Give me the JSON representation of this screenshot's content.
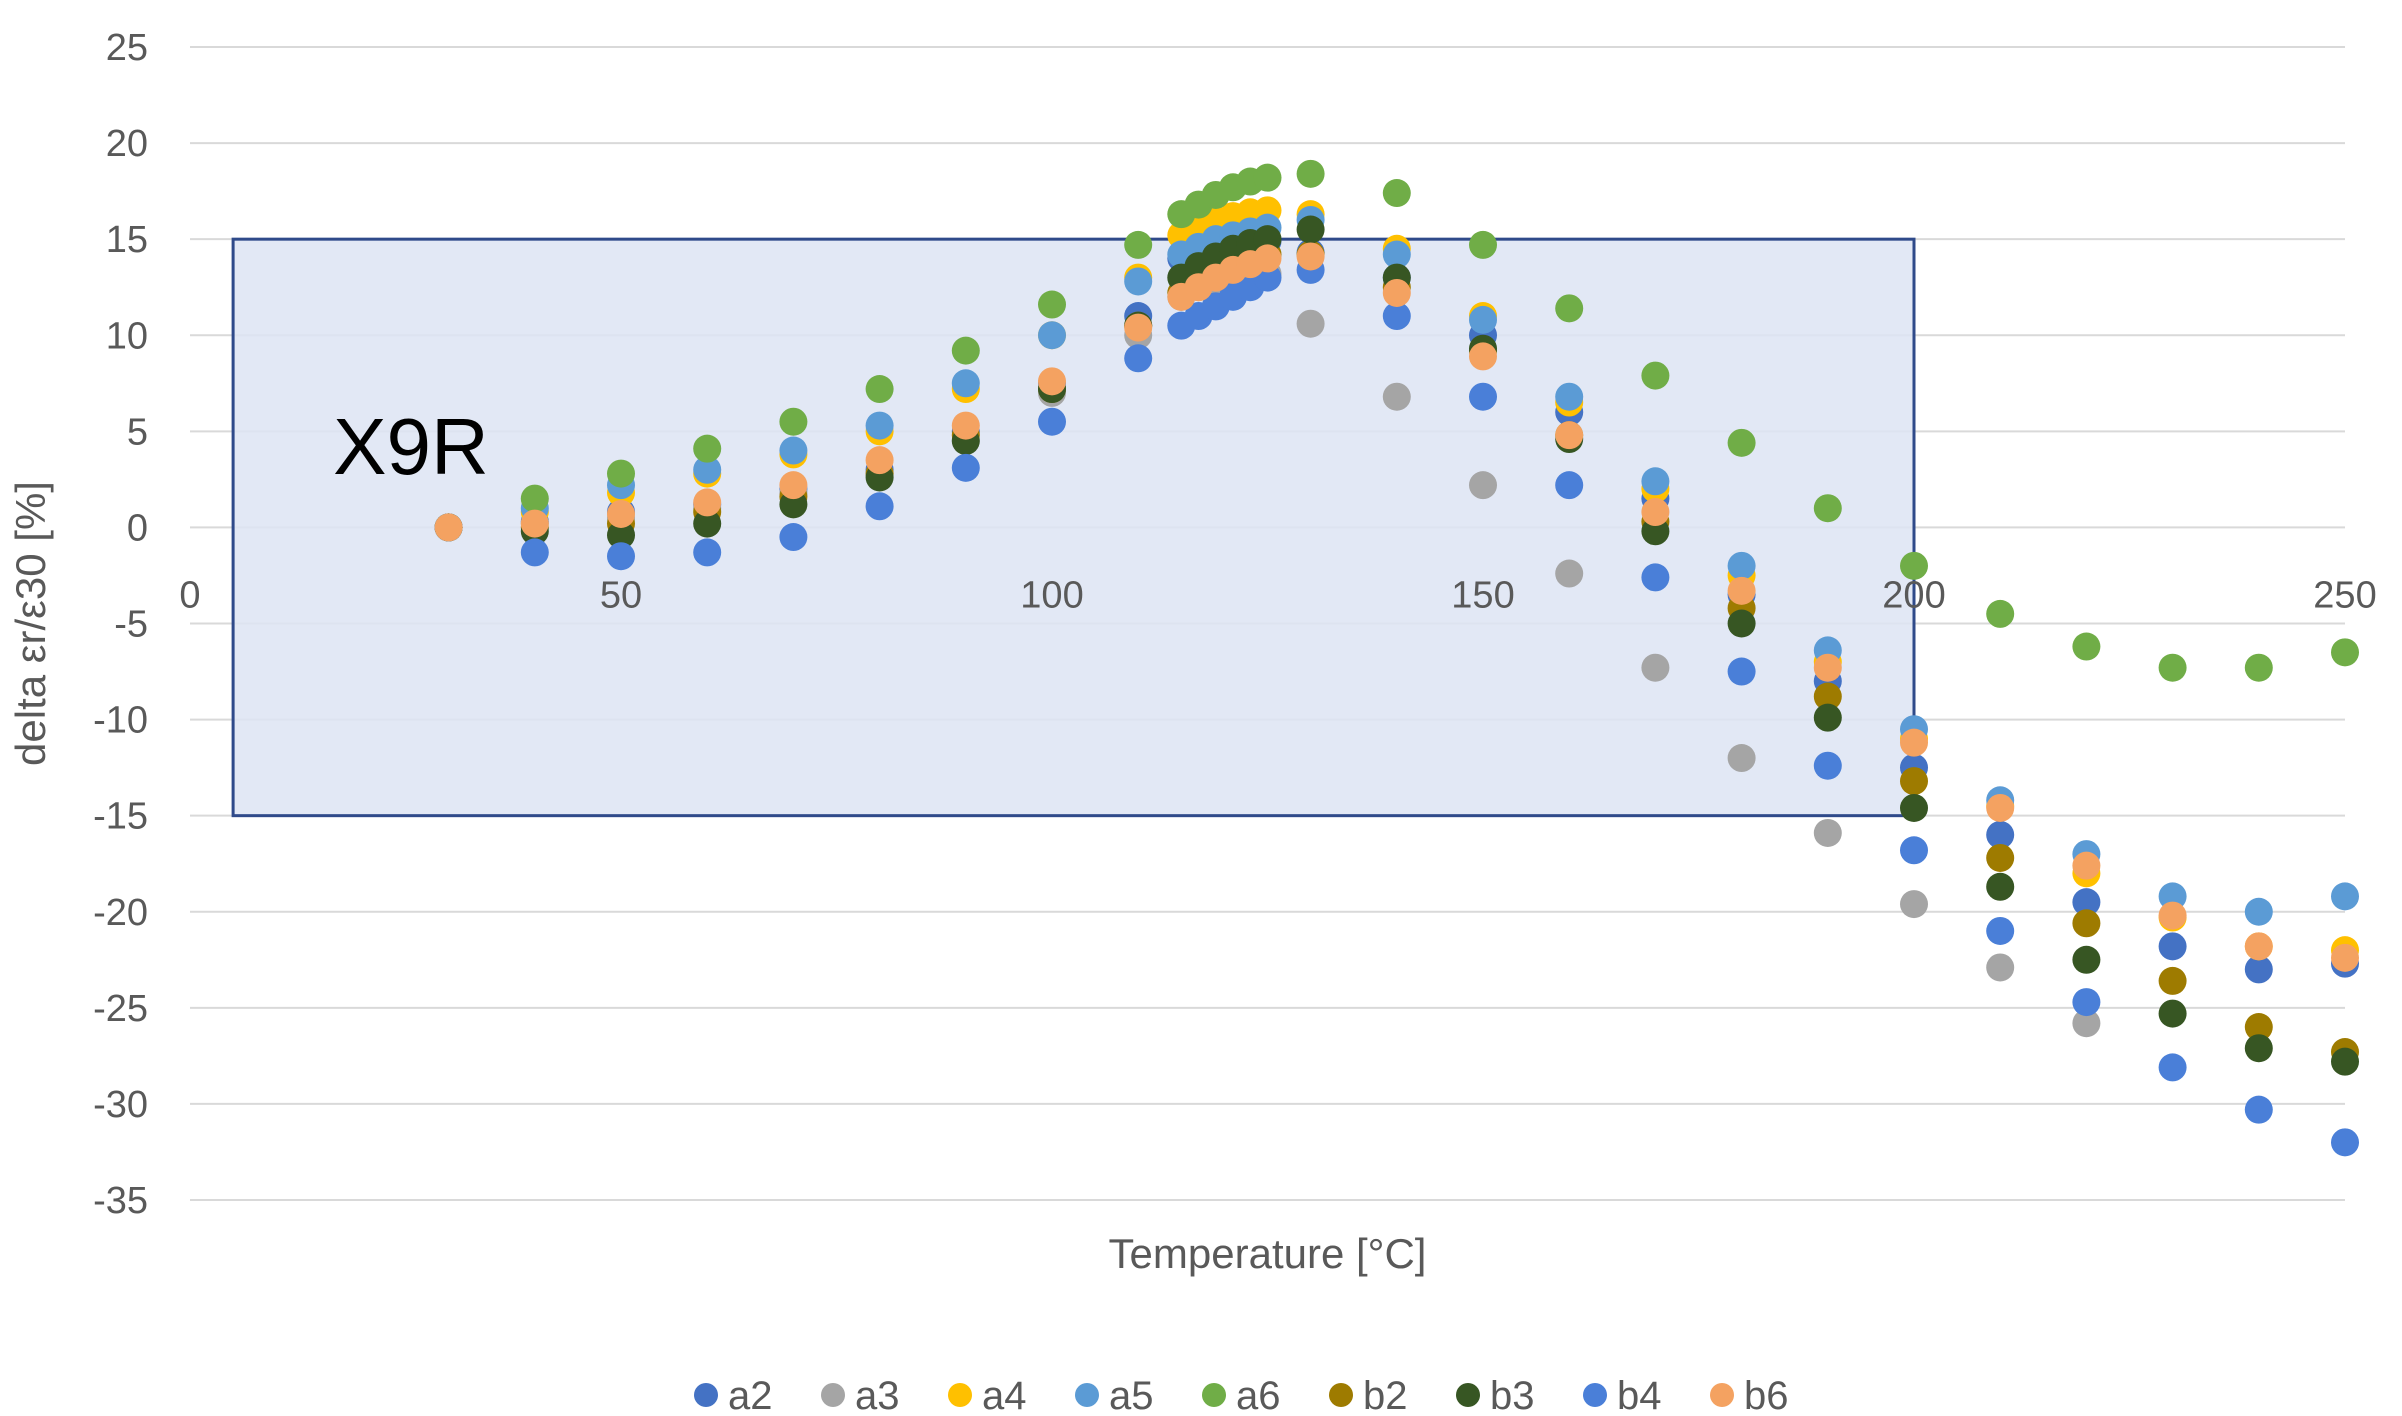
{
  "chart_data": {
    "type": "scatter",
    "xlabel": "Temperature  [°C]",
    "ylabel": "delta εr/ε30  [%]",
    "xlim": [
      0,
      250
    ],
    "ylim": [
      -35,
      25
    ],
    "x_ticks": [
      "0",
      "50",
      "100",
      "150",
      "200",
      "250"
    ],
    "y_ticks": [
      "25",
      "20",
      "15",
      "10",
      "5",
      "0",
      "-5",
      "-10",
      "-15",
      "-20",
      "-25",
      "-30",
      "-35"
    ],
    "grid": "horizontal",
    "legend_position": "bottom",
    "region": {
      "label": "X9R",
      "x": [
        5,
        200
      ],
      "y": [
        -15,
        15
      ],
      "fill": "#dde4f3",
      "stroke": "#2f4a8a"
    },
    "series": [
      {
        "name": "a2",
        "color": "#4472c4",
        "points": [
          [
            30,
            0
          ],
          [
            40,
            0.3
          ],
          [
            50,
            0.8
          ],
          [
            60,
            1.2
          ],
          [
            70,
            2
          ],
          [
            80,
            3
          ],
          [
            90,
            5
          ],
          [
            100,
            7.5
          ],
          [
            110,
            11
          ],
          [
            115,
            14
          ],
          [
            117,
            14.5
          ],
          [
            119,
            14.8
          ],
          [
            121,
            15
          ],
          [
            123,
            15
          ],
          [
            125,
            14.9
          ],
          [
            130,
            14.3
          ],
          [
            140,
            13
          ],
          [
            150,
            10
          ],
          [
            160,
            6
          ],
          [
            170,
            1.5
          ],
          [
            180,
            -3.5
          ],
          [
            190,
            -8
          ],
          [
            200,
            -12.5
          ],
          [
            210,
            -16
          ],
          [
            220,
            -19.5
          ],
          [
            230,
            -21.8
          ],
          [
            240,
            -23
          ],
          [
            250,
            -22.7
          ]
        ]
      },
      {
        "name": "a3",
        "color": "#a5a5a5",
        "points": [
          [
            30,
            0
          ],
          [
            40,
            0.2
          ],
          [
            50,
            0.5
          ],
          [
            60,
            1
          ],
          [
            70,
            1.8
          ],
          [
            80,
            2.8
          ],
          [
            90,
            4.5
          ],
          [
            100,
            7
          ],
          [
            110,
            10
          ],
          [
            115,
            12
          ],
          [
            117,
            12.5
          ],
          [
            119,
            12.8
          ],
          [
            121,
            13
          ],
          [
            123,
            13.1
          ],
          [
            125,
            13.2
          ],
          [
            130,
            10.6
          ],
          [
            140,
            6.8
          ],
          [
            150,
            2.2
          ],
          [
            160,
            -2.4
          ],
          [
            170,
            -7.3
          ],
          [
            180,
            -12
          ],
          [
            190,
            -15.9
          ],
          [
            200,
            -19.6
          ],
          [
            210,
            -22.9
          ],
          [
            220,
            -25.8
          ]
        ]
      },
      {
        "name": "a4",
        "color": "#ffc000",
        "points": [
          [
            30,
            0
          ],
          [
            40,
            0.8
          ],
          [
            50,
            1.8
          ],
          [
            60,
            2.8
          ],
          [
            70,
            3.8
          ],
          [
            80,
            5
          ],
          [
            90,
            7.2
          ],
          [
            100,
            10
          ],
          [
            110,
            13
          ],
          [
            115,
            15.2
          ],
          [
            117,
            15.6
          ],
          [
            119,
            16
          ],
          [
            121,
            16.2
          ],
          [
            123,
            16.4
          ],
          [
            125,
            16.5
          ],
          [
            130,
            16.3
          ],
          [
            140,
            14.5
          ],
          [
            150,
            11
          ],
          [
            160,
            6.5
          ],
          [
            170,
            2
          ],
          [
            180,
            -2.5
          ],
          [
            190,
            -7
          ],
          [
            200,
            -11
          ],
          [
            210,
            -14.5
          ],
          [
            220,
            -18
          ],
          [
            230,
            -20.3
          ],
          [
            240,
            -21.8
          ],
          [
            250,
            -22
          ]
        ]
      },
      {
        "name": "a5",
        "color": "#5b9bd5",
        "points": [
          [
            30,
            0
          ],
          [
            40,
            1
          ],
          [
            50,
            2.2
          ],
          [
            60,
            3
          ],
          [
            70,
            4
          ],
          [
            80,
            5.3
          ],
          [
            90,
            7.5
          ],
          [
            100,
            10
          ],
          [
            110,
            12.8
          ],
          [
            115,
            14.2
          ],
          [
            117,
            14.6
          ],
          [
            119,
            15
          ],
          [
            121,
            15.2
          ],
          [
            123,
            15.4
          ],
          [
            125,
            15.6
          ],
          [
            130,
            16
          ],
          [
            140,
            14.2
          ],
          [
            150,
            10.8
          ],
          [
            160,
            6.8
          ],
          [
            170,
            2.4
          ],
          [
            180,
            -2
          ],
          [
            190,
            -6.4
          ],
          [
            200,
            -10.5
          ],
          [
            210,
            -14.2
          ],
          [
            220,
            -17
          ],
          [
            230,
            -19.2
          ],
          [
            240,
            -20
          ],
          [
            250,
            -19.2
          ]
        ]
      },
      {
        "name": "a6",
        "color": "#70ad47",
        "points": [
          [
            30,
            0
          ],
          [
            40,
            1.5
          ],
          [
            50,
            2.8
          ],
          [
            60,
            4.1
          ],
          [
            70,
            5.5
          ],
          [
            80,
            7.2
          ],
          [
            90,
            9.2
          ],
          [
            100,
            11.6
          ],
          [
            110,
            14.7
          ],
          [
            115,
            16.3
          ],
          [
            117,
            16.8
          ],
          [
            119,
            17.3
          ],
          [
            121,
            17.7
          ],
          [
            123,
            18
          ],
          [
            125,
            18.2
          ],
          [
            130,
            18.4
          ],
          [
            140,
            17.4
          ],
          [
            150,
            14.7
          ],
          [
            160,
            11.4
          ],
          [
            170,
            7.9
          ],
          [
            180,
            4.4
          ],
          [
            190,
            1
          ],
          [
            200,
            -2
          ],
          [
            210,
            -4.5
          ],
          [
            220,
            -6.2
          ],
          [
            230,
            -7.3
          ],
          [
            240,
            -7.3
          ],
          [
            250,
            -6.5
          ]
        ]
      },
      {
        "name": "b2",
        "color": "#9e7b00",
        "points": [
          [
            30,
            0
          ],
          [
            40,
            0
          ],
          [
            50,
            0.2
          ],
          [
            60,
            0.8
          ],
          [
            70,
            1.6
          ],
          [
            80,
            2.8
          ],
          [
            90,
            4.8
          ],
          [
            100,
            7.2
          ],
          [
            110,
            10.5
          ],
          [
            115,
            12.2
          ],
          [
            117,
            12.8
          ],
          [
            119,
            13.2
          ],
          [
            121,
            13.6
          ],
          [
            123,
            14
          ],
          [
            125,
            14.2
          ],
          [
            130,
            14.2
          ],
          [
            140,
            12.5
          ],
          [
            150,
            9.2
          ],
          [
            160,
            4.8
          ],
          [
            170,
            0.3
          ],
          [
            180,
            -4.2
          ],
          [
            190,
            -8.8
          ],
          [
            200,
            -13.2
          ],
          [
            210,
            -17.2
          ],
          [
            220,
            -20.6
          ],
          [
            230,
            -23.6
          ],
          [
            240,
            -26
          ],
          [
            250,
            -27.3
          ]
        ]
      },
      {
        "name": "b3",
        "color": "#375623",
        "points": [
          [
            30,
            0
          ],
          [
            40,
            -0.2
          ],
          [
            50,
            -0.4
          ],
          [
            60,
            0.2
          ],
          [
            70,
            1.2
          ],
          [
            80,
            2.6
          ],
          [
            90,
            4.5
          ],
          [
            100,
            7.2
          ],
          [
            110,
            10.5
          ],
          [
            115,
            13
          ],
          [
            117,
            13.6
          ],
          [
            119,
            14.1
          ],
          [
            121,
            14.5
          ],
          [
            123,
            14.8
          ],
          [
            125,
            15
          ],
          [
            130,
            15.5
          ],
          [
            140,
            13
          ],
          [
            150,
            9.3
          ],
          [
            160,
            4.6
          ],
          [
            170,
            -0.2
          ],
          [
            180,
            -5
          ],
          [
            190,
            -9.9
          ],
          [
            200,
            -14.6
          ],
          [
            210,
            -18.7
          ],
          [
            220,
            -22.5
          ],
          [
            230,
            -25.3
          ],
          [
            240,
            -27.1
          ],
          [
            250,
            -27.8
          ]
        ]
      },
      {
        "name": "b4",
        "color": "#4a7fd8",
        "points": [
          [
            30,
            0
          ],
          [
            40,
            -1.3
          ],
          [
            50,
            -1.5
          ],
          [
            60,
            -1.3
          ],
          [
            70,
            -0.5
          ],
          [
            80,
            1.1
          ],
          [
            90,
            3.1
          ],
          [
            100,
            5.5
          ],
          [
            110,
            8.8
          ],
          [
            115,
            10.5
          ],
          [
            117,
            11
          ],
          [
            119,
            11.5
          ],
          [
            121,
            12
          ],
          [
            123,
            12.5
          ],
          [
            125,
            13
          ],
          [
            130,
            13.4
          ],
          [
            140,
            11
          ],
          [
            150,
            6.8
          ],
          [
            160,
            2.2
          ],
          [
            170,
            -2.6
          ],
          [
            180,
            -7.5
          ],
          [
            190,
            -12.4
          ],
          [
            200,
            -16.8
          ],
          [
            210,
            -21
          ],
          [
            220,
            -24.7
          ],
          [
            230,
            -28.1
          ],
          [
            240,
            -30.3
          ],
          [
            250,
            -32
          ]
        ]
      },
      {
        "name": "b6",
        "color": "#f4a261",
        "points": [
          [
            30,
            0
          ],
          [
            40,
            0.2
          ],
          [
            50,
            0.7
          ],
          [
            60,
            1.3
          ],
          [
            70,
            2.2
          ],
          [
            80,
            3.5
          ],
          [
            90,
            5.3
          ],
          [
            100,
            7.6
          ],
          [
            110,
            10.4
          ],
          [
            115,
            12
          ],
          [
            117,
            12.5
          ],
          [
            119,
            13
          ],
          [
            121,
            13.4
          ],
          [
            123,
            13.7
          ],
          [
            125,
            14
          ],
          [
            130,
            14.1
          ],
          [
            140,
            12.2
          ],
          [
            150,
            8.9
          ],
          [
            160,
            4.8
          ],
          [
            170,
            0.8
          ],
          [
            180,
            -3.3
          ],
          [
            190,
            -7.3
          ],
          [
            200,
            -11.2
          ],
          [
            210,
            -14.6
          ],
          [
            220,
            -17.6
          ],
          [
            230,
            -20.2
          ],
          [
            240,
            -21.8
          ],
          [
            250,
            -22.4
          ]
        ]
      }
    ]
  }
}
